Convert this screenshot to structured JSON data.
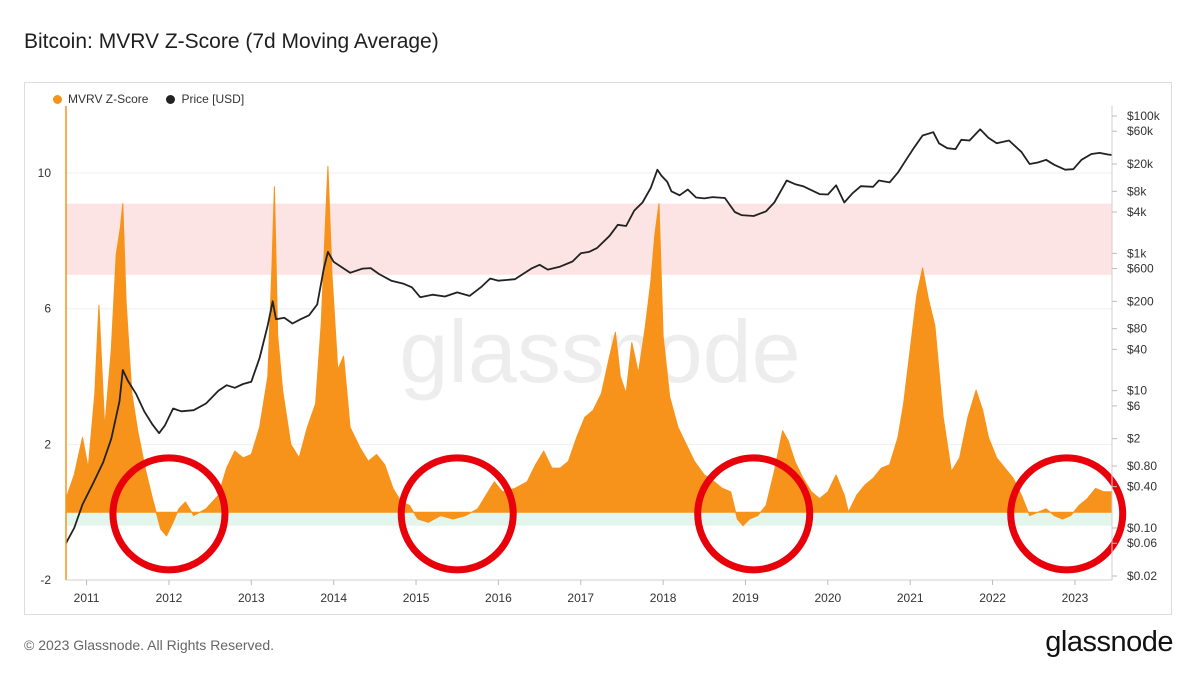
{
  "footer": {
    "copyright": "© 2023 Glassnode. All Rights Reserved.",
    "brand": "glassnode"
  },
  "watermark": "glassnode",
  "colors": {
    "zscore": "#f7931a",
    "price": "#222222",
    "red_band": "#fde3e3",
    "green_band": "#e3f5ea",
    "circle": "#e8000b"
  },
  "chart_data": {
    "type": "area",
    "title": "Bitcoin: MVRV Z-Score (7d Moving Average)",
    "legend": [
      "MVRV Z-Score",
      "Price [USD]"
    ],
    "legend_position": "top-left",
    "x_ticks": [
      "2011",
      "2012",
      "2013",
      "2014",
      "2015",
      "2016",
      "2017",
      "2018",
      "2019",
      "2020",
      "2021",
      "2022",
      "2023"
    ],
    "x_range": [
      2010.75,
      2023.45
    ],
    "left_axis": {
      "ticks": [
        10,
        6,
        2,
        -2
      ],
      "range": [
        -2,
        11.8
      ]
    },
    "right_axis": {
      "scale": "log",
      "ticks": [
        "$100k",
        "$60k",
        "$20k",
        "$8k",
        "$4k",
        "$1k",
        "$600",
        "$200",
        "$80",
        "$40",
        "$10",
        "$6",
        "$2",
        "$0.80",
        "$0.40",
        "$0.10",
        "$0.06",
        "$0.02"
      ],
      "range": [
        0.02,
        100000
      ]
    },
    "bands": [
      {
        "name": "red",
        "from": 7.0,
        "to": 9.1
      },
      {
        "name": "green",
        "from": -0.4,
        "to": 0
      }
    ],
    "highlight_circles": [
      2012.0,
      2015.5,
      2019.1,
      2022.9
    ],
    "series": [
      {
        "name": "MVRV Z-Score",
        "axis": "left",
        "points": [
          [
            2010.75,
            0.4
          ],
          [
            2010.85,
            1.1
          ],
          [
            2010.95,
            2.2
          ],
          [
            2011.02,
            1.3
          ],
          [
            2011.1,
            3.5
          ],
          [
            2011.15,
            6.1
          ],
          [
            2011.22,
            2.5
          ],
          [
            2011.3,
            4.8
          ],
          [
            2011.36,
            7.6
          ],
          [
            2011.41,
            8.4
          ],
          [
            2011.44,
            9.1
          ],
          [
            2011.48,
            6.2
          ],
          [
            2011.55,
            3.5
          ],
          [
            2011.62,
            2.4
          ],
          [
            2011.72,
            1.2
          ],
          [
            2011.8,
            0.4
          ],
          [
            2011.9,
            -0.5
          ],
          [
            2011.97,
            -0.7
          ],
          [
            2012.05,
            -0.3
          ],
          [
            2012.12,
            0.1
          ],
          [
            2012.2,
            0.3
          ],
          [
            2012.3,
            -0.1
          ],
          [
            2012.45,
            0.1
          ],
          [
            2012.6,
            0.5
          ],
          [
            2012.7,
            1.3
          ],
          [
            2012.8,
            1.8
          ],
          [
            2012.9,
            1.6
          ],
          [
            2013.0,
            1.7
          ],
          [
            2013.1,
            2.5
          ],
          [
            2013.2,
            4.0
          ],
          [
            2013.25,
            7.2
          ],
          [
            2013.28,
            9.6
          ],
          [
            2013.32,
            5.2
          ],
          [
            2013.38,
            3.6
          ],
          [
            2013.48,
            2.0
          ],
          [
            2013.58,
            1.6
          ],
          [
            2013.68,
            2.5
          ],
          [
            2013.78,
            3.2
          ],
          [
            2013.85,
            5.6
          ],
          [
            2013.9,
            8.5
          ],
          [
            2013.93,
            10.2
          ],
          [
            2013.98,
            7.0
          ],
          [
            2014.05,
            4.2
          ],
          [
            2014.12,
            4.6
          ],
          [
            2014.2,
            2.5
          ],
          [
            2014.32,
            1.9
          ],
          [
            2014.42,
            1.5
          ],
          [
            2014.52,
            1.7
          ],
          [
            2014.62,
            1.4
          ],
          [
            2014.72,
            0.7
          ],
          [
            2014.82,
            0.3
          ],
          [
            2014.92,
            0.2
          ],
          [
            2015.02,
            -0.2
          ],
          [
            2015.15,
            -0.3
          ],
          [
            2015.3,
            -0.1
          ],
          [
            2015.45,
            -0.2
          ],
          [
            2015.6,
            -0.1
          ],
          [
            2015.75,
            0.1
          ],
          [
            2015.85,
            0.5
          ],
          [
            2015.95,
            0.9
          ],
          [
            2016.05,
            0.6
          ],
          [
            2016.2,
            0.7
          ],
          [
            2016.35,
            0.9
          ],
          [
            2016.45,
            1.4
          ],
          [
            2016.55,
            1.8
          ],
          [
            2016.65,
            1.3
          ],
          [
            2016.75,
            1.3
          ],
          [
            2016.85,
            1.5
          ],
          [
            2016.95,
            2.2
          ],
          [
            2017.05,
            2.8
          ],
          [
            2017.15,
            3.0
          ],
          [
            2017.25,
            3.5
          ],
          [
            2017.35,
            4.6
          ],
          [
            2017.42,
            5.3
          ],
          [
            2017.48,
            4.0
          ],
          [
            2017.55,
            3.5
          ],
          [
            2017.62,
            5.0
          ],
          [
            2017.7,
            4.1
          ],
          [
            2017.78,
            5.4
          ],
          [
            2017.85,
            6.8
          ],
          [
            2017.9,
            8.2
          ],
          [
            2017.95,
            9.1
          ],
          [
            2018.0,
            5.2
          ],
          [
            2018.08,
            3.4
          ],
          [
            2018.18,
            2.5
          ],
          [
            2018.28,
            2.0
          ],
          [
            2018.38,
            1.5
          ],
          [
            2018.5,
            1.1
          ],
          [
            2018.62,
            0.9
          ],
          [
            2018.72,
            0.7
          ],
          [
            2018.82,
            0.6
          ],
          [
            2018.9,
            -0.2
          ],
          [
            2018.97,
            -0.4
          ],
          [
            2019.05,
            -0.2
          ],
          [
            2019.15,
            -0.1
          ],
          [
            2019.25,
            0.2
          ],
          [
            2019.35,
            1.2
          ],
          [
            2019.45,
            2.4
          ],
          [
            2019.52,
            2.1
          ],
          [
            2019.6,
            1.5
          ],
          [
            2019.7,
            1.0
          ],
          [
            2019.8,
            0.6
          ],
          [
            2019.9,
            0.4
          ],
          [
            2020.0,
            0.6
          ],
          [
            2020.1,
            1.1
          ],
          [
            2020.2,
            0.5
          ],
          [
            2020.25,
            0.0
          ],
          [
            2020.35,
            0.5
          ],
          [
            2020.45,
            0.8
          ],
          [
            2020.55,
            1.0
          ],
          [
            2020.65,
            1.3
          ],
          [
            2020.75,
            1.4
          ],
          [
            2020.85,
            2.2
          ],
          [
            2020.92,
            3.2
          ],
          [
            2021.0,
            4.8
          ],
          [
            2021.08,
            6.4
          ],
          [
            2021.15,
            7.2
          ],
          [
            2021.22,
            6.3
          ],
          [
            2021.3,
            5.5
          ],
          [
            2021.4,
            2.8
          ],
          [
            2021.5,
            1.2
          ],
          [
            2021.6,
            1.6
          ],
          [
            2021.7,
            2.8
          ],
          [
            2021.8,
            3.6
          ],
          [
            2021.88,
            3.0
          ],
          [
            2021.95,
            2.2
          ],
          [
            2022.05,
            1.6
          ],
          [
            2022.15,
            1.3
          ],
          [
            2022.25,
            1.0
          ],
          [
            2022.35,
            0.5
          ],
          [
            2022.45,
            -0.1
          ],
          [
            2022.55,
            0.0
          ],
          [
            2022.65,
            0.1
          ],
          [
            2022.75,
            -0.1
          ],
          [
            2022.85,
            -0.2
          ],
          [
            2022.95,
            -0.1
          ],
          [
            2023.05,
            0.2
          ],
          [
            2023.15,
            0.4
          ],
          [
            2023.25,
            0.7
          ],
          [
            2023.35,
            0.6
          ],
          [
            2023.45,
            0.6
          ]
        ]
      },
      {
        "name": "Price [USD]",
        "axis": "right",
        "points": [
          [
            2010.75,
            0.06
          ],
          [
            2010.85,
            0.1
          ],
          [
            2010.95,
            0.22
          ],
          [
            2011.08,
            0.45
          ],
          [
            2011.2,
            0.9
          ],
          [
            2011.3,
            2.0
          ],
          [
            2011.4,
            7.0
          ],
          [
            2011.44,
            20
          ],
          [
            2011.5,
            14
          ],
          [
            2011.6,
            9
          ],
          [
            2011.7,
            5
          ],
          [
            2011.8,
            3.2
          ],
          [
            2011.88,
            2.4
          ],
          [
            2011.95,
            3.1
          ],
          [
            2012.05,
            5.5
          ],
          [
            2012.15,
            5.0
          ],
          [
            2012.3,
            5.2
          ],
          [
            2012.45,
            6.5
          ],
          [
            2012.6,
            10
          ],
          [
            2012.7,
            12
          ],
          [
            2012.8,
            11
          ],
          [
            2012.9,
            12.5
          ],
          [
            2013.0,
            13.5
          ],
          [
            2013.1,
            30
          ],
          [
            2013.2,
            90
          ],
          [
            2013.26,
            200
          ],
          [
            2013.3,
            110
          ],
          [
            2013.4,
            115
          ],
          [
            2013.5,
            95
          ],
          [
            2013.6,
            110
          ],
          [
            2013.7,
            125
          ],
          [
            2013.8,
            180
          ],
          [
            2013.88,
            600
          ],
          [
            2013.93,
            1050
          ],
          [
            2014.0,
            750
          ],
          [
            2014.08,
            650
          ],
          [
            2014.2,
            520
          ],
          [
            2014.35,
            600
          ],
          [
            2014.45,
            610
          ],
          [
            2014.55,
            500
          ],
          [
            2014.7,
            400
          ],
          [
            2014.85,
            360
          ],
          [
            2014.95,
            320
          ],
          [
            2015.05,
            230
          ],
          [
            2015.2,
            250
          ],
          [
            2015.35,
            235
          ],
          [
            2015.5,
            270
          ],
          [
            2015.65,
            240
          ],
          [
            2015.8,
            330
          ],
          [
            2015.9,
            430
          ],
          [
            2016.0,
            400
          ],
          [
            2016.2,
            420
          ],
          [
            2016.4,
            600
          ],
          [
            2016.5,
            680
          ],
          [
            2016.6,
            580
          ],
          [
            2016.75,
            640
          ],
          [
            2016.9,
            760
          ],
          [
            2017.0,
            1000
          ],
          [
            2017.1,
            1050
          ],
          [
            2017.2,
            1200
          ],
          [
            2017.35,
            1800
          ],
          [
            2017.45,
            2600
          ],
          [
            2017.55,
            2500
          ],
          [
            2017.65,
            4200
          ],
          [
            2017.75,
            5500
          ],
          [
            2017.85,
            9000
          ],
          [
            2017.93,
            16500
          ],
          [
            2017.98,
            13500
          ],
          [
            2018.05,
            11000
          ],
          [
            2018.1,
            8000
          ],
          [
            2018.2,
            7000
          ],
          [
            2018.3,
            8500
          ],
          [
            2018.4,
            6500
          ],
          [
            2018.5,
            6300
          ],
          [
            2018.6,
            6600
          ],
          [
            2018.75,
            6400
          ],
          [
            2018.87,
            4000
          ],
          [
            2018.95,
            3600
          ],
          [
            2019.1,
            3500
          ],
          [
            2019.25,
            4100
          ],
          [
            2019.35,
            5500
          ],
          [
            2019.45,
            9000
          ],
          [
            2019.5,
            11500
          ],
          [
            2019.6,
            10200
          ],
          [
            2019.7,
            9500
          ],
          [
            2019.8,
            8300
          ],
          [
            2019.9,
            7300
          ],
          [
            2020.0,
            7200
          ],
          [
            2020.1,
            9800
          ],
          [
            2020.2,
            5500
          ],
          [
            2020.3,
            7500
          ],
          [
            2020.4,
            9500
          ],
          [
            2020.55,
            9300
          ],
          [
            2020.62,
            11500
          ],
          [
            2020.75,
            10800
          ],
          [
            2020.85,
            15000
          ],
          [
            2020.95,
            23000
          ],
          [
            2021.05,
            35000
          ],
          [
            2021.15,
            52000
          ],
          [
            2021.28,
            58000
          ],
          [
            2021.35,
            40000
          ],
          [
            2021.45,
            34000
          ],
          [
            2021.55,
            33000
          ],
          [
            2021.62,
            45000
          ],
          [
            2021.72,
            44000
          ],
          [
            2021.85,
            64000
          ],
          [
            2021.95,
            48000
          ],
          [
            2022.05,
            40000
          ],
          [
            2022.2,
            44000
          ],
          [
            2022.35,
            30000
          ],
          [
            2022.45,
            20000
          ],
          [
            2022.55,
            21000
          ],
          [
            2022.65,
            23000
          ],
          [
            2022.75,
            19500
          ],
          [
            2022.88,
            16500
          ],
          [
            2022.98,
            16800
          ],
          [
            2023.08,
            23000
          ],
          [
            2023.2,
            28000
          ],
          [
            2023.3,
            29000
          ],
          [
            2023.4,
            27500
          ],
          [
            2023.45,
            27000
          ]
        ]
      }
    ]
  }
}
